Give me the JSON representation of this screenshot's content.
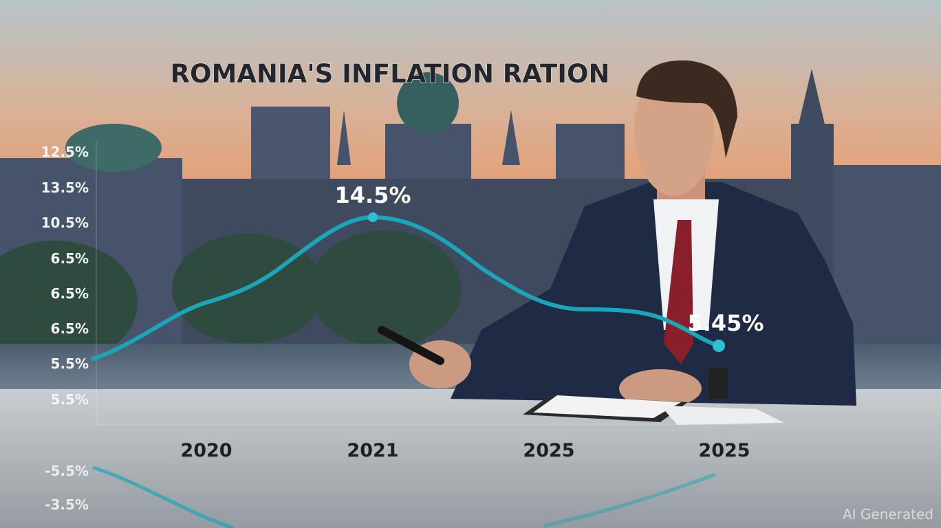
{
  "title": "ROMANIA'S INFLATION RATION",
  "y_axis_labels": [
    "12.5%",
    "13.5%",
    "10.5%",
    "6.5%",
    "6.5%",
    "6.5%",
    "5.5%",
    "5.5%",
    "-5.5%",
    "-3.5%"
  ],
  "x_axis_labels": [
    "2020",
    "2021",
    "2025",
    "2025"
  ],
  "annotations": [
    "14.5%",
    "5.45%"
  ],
  "watermark": "AI Generated"
}
